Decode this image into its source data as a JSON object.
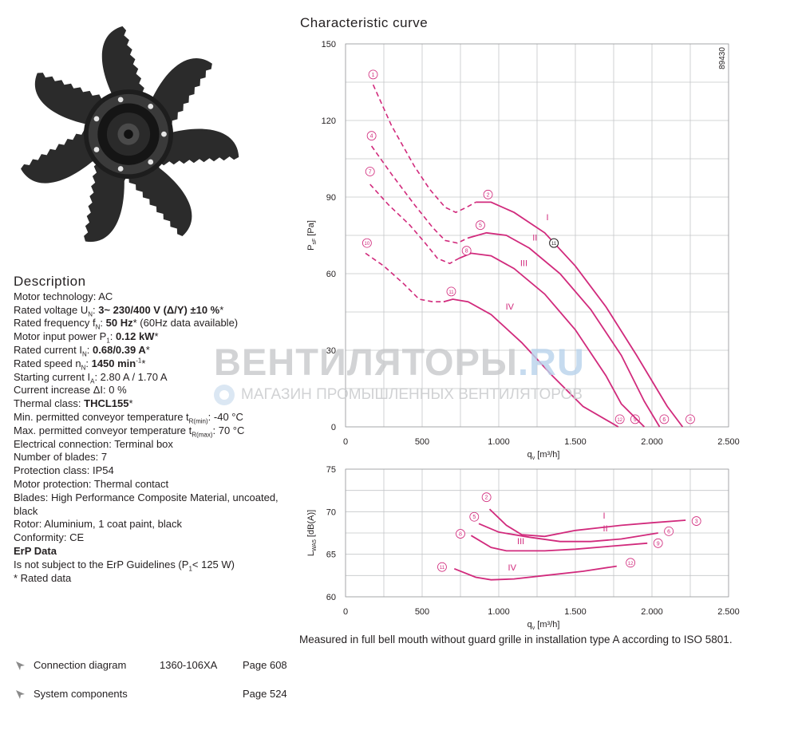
{
  "description": {
    "heading": "Description",
    "rows": [
      {
        "label": "Motor technology: AC"
      },
      {
        "label": "Rated voltage U",
        "sub": "N",
        "label2": ": ",
        "bold": "3~ 230/400 V (Δ/Y) ±10 %",
        "tail": "*"
      },
      {
        "label": "Rated frequency f",
        "sub": "N",
        "label2": ": ",
        "bold": "50 Hz",
        "tail": "* (60Hz data available)"
      },
      {
        "label": "Motor input power P",
        "sub": "1",
        "label2": ": ",
        "bold": "0.12 kW",
        "tail": "*"
      },
      {
        "label": "Rated current I",
        "sub": "N",
        "label2": ": ",
        "bold": "0.68/0.39 A",
        "tail": "*"
      },
      {
        "label": "Rated speed n",
        "sub": "N",
        "label2": ": ",
        "bold": "1450 min",
        "sup": "-1",
        "tail": "*"
      },
      {
        "label": "Starting current I",
        "sub": "A",
        "label2": ": 2.80 A / 1.70 A"
      },
      {
        "label": "Current increase ΔI: 0 %"
      },
      {
        "label": "Thermal class: ",
        "bold": "THCL155",
        "tail": "*"
      },
      {
        "label": "Min. permitted conveyor temperature t",
        "sub": "R(min)",
        "label2": ": -40  °C"
      },
      {
        "label": "Max. permitted conveyor temperature t",
        "sub": "R(max)",
        "label2": ": 70 °C"
      },
      {
        "label": "Electrical connection: Terminal box"
      },
      {
        "label": "Number of blades: 7"
      },
      {
        "label": "Protection class: IP54"
      },
      {
        "label": "Motor protection: Thermal contact"
      },
      {
        "label": "Blades: High Performance Composite Material, uncoated, black"
      },
      {
        "label": "Rotor: Aluminium, 1 coat paint, black"
      },
      {
        "label": "Conformity:  CE"
      },
      {
        "bold": "ErP Data"
      },
      {
        "label": "Is not subject to the ErP Guidelines (P",
        "sub": "1",
        "label2": "< 125 W)"
      },
      {
        "label": "* Rated data"
      }
    ]
  },
  "links": [
    {
      "label": "Connection diagram",
      "code": "1360-106XA",
      "page": "Page 608"
    },
    {
      "label": "System components",
      "code": "",
      "page": "Page 524"
    }
  ],
  "watermark": {
    "brand_main": "ВЕНТИЛЯТОРЫ",
    "brand_tld": ".RU",
    "tagline": "МАГАЗИН ПРОМЫШЛЕННЫХ ВЕНТИЛЯТОРОВ"
  },
  "chart_title": "Characteristic curve",
  "measurement_note": "Measured in full bell mouth without guard grille in installation type A according to ISO 5801.",
  "colors": {
    "curve": "#d12a7c",
    "grid": "#c4c6c8",
    "text": "#231f20"
  },
  "chart_data": [
    {
      "type": "line",
      "id": "pressure",
      "title": "",
      "figure_number": "89430",
      "xlabel": "q",
      "xlabel_sub": "v",
      "xlabel_unit": " [m³/h]",
      "ylabel": "P",
      "ylabel_sub": "sF",
      "ylabel_unit": " [Pa]",
      "xlim": [
        0,
        2500
      ],
      "ylim": [
        0,
        150
      ],
      "xticks": [
        0,
        500,
        1000,
        1500,
        2000,
        2500
      ],
      "xtick_labels": [
        "0",
        "500",
        "1.000",
        "1.500",
        "2.000",
        "2.500"
      ],
      "yticks": [
        0,
        30,
        60,
        90,
        120,
        150
      ],
      "xgrid_step": 250,
      "ygrid_step": 15,
      "series": [
        {
          "name": "I",
          "label_at": [
            1310,
            81
          ],
          "dashed": [
            [
              180,
              134
            ],
            [
              300,
              118
            ],
            [
              450,
              102
            ],
            [
              550,
              93
            ],
            [
              650,
              86
            ],
            [
              720,
              84
            ],
            [
              790,
              86
            ],
            [
              850,
              88
            ]
          ],
          "solid": [
            [
              850,
              88
            ],
            [
              950,
              88
            ],
            [
              1100,
              84
            ],
            [
              1300,
              76
            ],
            [
              1500,
              63
            ],
            [
              1700,
              47
            ],
            [
              1900,
              28
            ],
            [
              2100,
              8
            ],
            [
              2200,
              0
            ]
          ],
          "markers": [
            {
              "n": "1",
              "at": [
                180,
                138
              ]
            },
            {
              "n": "2",
              "at": [
                930,
                91
              ]
            },
            {
              "n": "3",
              "at": [
                2250,
                3
              ]
            },
            {
              "n": "6",
              "at": [
                2080,
                3
              ]
            }
          ]
        },
        {
          "name": "II",
          "label_at": [
            1220,
            73
          ],
          "dashed": [
            [
              170,
              110
            ],
            [
              300,
              99
            ],
            [
              450,
              87
            ],
            [
              570,
              78
            ],
            [
              650,
              73
            ],
            [
              730,
              72
            ],
            [
              800,
              74
            ]
          ],
          "solid": [
            [
              800,
              74
            ],
            [
              920,
              76
            ],
            [
              1050,
              75
            ],
            [
              1200,
              70
            ],
            [
              1400,
              60
            ],
            [
              1600,
              46
            ],
            [
              1800,
              28
            ],
            [
              1950,
              10
            ],
            [
              2050,
              0
            ]
          ],
          "markers": [
            {
              "n": "4",
              "at": [
                170,
                114
              ]
            },
            {
              "n": "5",
              "at": [
                880,
                79
              ]
            },
            {
              "n": "9",
              "at": [
                1890,
                3
              ]
            }
          ]
        },
        {
          "name": "III",
          "label_at": [
            1140,
            63
          ],
          "dashed": [
            [
              160,
              95
            ],
            [
              280,
              87
            ],
            [
              420,
              79
            ],
            [
              520,
              72
            ],
            [
              600,
              66
            ],
            [
              680,
              64
            ],
            [
              740,
              66
            ]
          ],
          "solid": [
            [
              740,
              66
            ],
            [
              820,
              68
            ],
            [
              950,
              67
            ],
            [
              1100,
              62
            ],
            [
              1300,
              52
            ],
            [
              1500,
              38
            ],
            [
              1700,
              20
            ],
            [
              1800,
              9
            ],
            [
              1950,
              0
            ]
          ],
          "markers": [
            {
              "n": "7",
              "at": [
                160,
                100
              ]
            },
            {
              "n": "8",
              "at": [
                790,
                69
              ]
            },
            {
              "n": "12",
              "at": [
                1790,
                3
              ]
            }
          ]
        },
        {
          "name": "IV",
          "label_at": [
            1045,
            46
          ],
          "dashed": [
            [
              130,
              68
            ],
            [
              250,
              63
            ],
            [
              380,
              56
            ],
            [
              480,
              50
            ],
            [
              570,
              49
            ],
            [
              640,
              49
            ]
          ],
          "solid": [
            [
              640,
              49
            ],
            [
              700,
              50
            ],
            [
              800,
              49
            ],
            [
              950,
              44
            ],
            [
              1150,
              33
            ],
            [
              1350,
              20
            ],
            [
              1550,
              8
            ],
            [
              1780,
              0
            ]
          ],
          "markers": [
            {
              "n": "10",
              "at": [
                140,
                72
              ]
            },
            {
              "n": "11",
              "at": [
                690,
                53
              ]
            }
          ]
        }
      ],
      "operating_point": {
        "n": "11",
        "at": [
          1360,
          72
        ]
      }
    },
    {
      "type": "line",
      "id": "sound",
      "title": "",
      "xlabel": "q",
      "xlabel_sub": "v",
      "xlabel_unit": " [m³/h]",
      "ylabel": "L",
      "ylabel_sub": "WA5",
      "ylabel_unit": " [dB(A)]",
      "xlim": [
        0,
        2500
      ],
      "ylim": [
        60,
        75
      ],
      "xticks": [
        0,
        500,
        1000,
        1500,
        2000,
        2500
      ],
      "xtick_labels": [
        "0",
        "500",
        "1.000",
        "1.500",
        "2.000",
        "2.500"
      ],
      "yticks": [
        60,
        65,
        70,
        75
      ],
      "xgrid_step": 250,
      "ygrid_step": 2.5,
      "series": [
        {
          "name": "I",
          "label_at": [
            1680,
            69.2
          ],
          "points": [
            [
              940,
              70.3
            ],
            [
              1050,
              68.4
            ],
            [
              1150,
              67.3
            ],
            [
              1300,
              67.1
            ],
            [
              1500,
              67.8
            ],
            [
              1800,
              68.4
            ],
            [
              2000,
              68.7
            ],
            [
              2220,
              69
            ]
          ],
          "markers": [
            {
              "n": "2",
              "at": [
                920,
                71.7
              ]
            },
            {
              "n": "3",
              "at": [
                2290,
                68.9
              ]
            }
          ]
        },
        {
          "name": "II",
          "label_at": [
            1680,
            67.7
          ],
          "points": [
            [
              870,
              68.6
            ],
            [
              1000,
              67.6
            ],
            [
              1200,
              67
            ],
            [
              1400,
              66.5
            ],
            [
              1600,
              66.5
            ],
            [
              1800,
              66.8
            ],
            [
              2040,
              67.5
            ]
          ],
          "markers": [
            {
              "n": "5",
              "at": [
                840,
                69.4
              ]
            },
            {
              "n": "6",
              "at": [
                2110,
                67.7
              ]
            }
          ]
        },
        {
          "name": "III",
          "label_at": [
            1120,
            66.2
          ],
          "points": [
            [
              820,
              67.2
            ],
            [
              950,
              65.8
            ],
            [
              1050,
              65.4
            ],
            [
              1300,
              65.4
            ],
            [
              1500,
              65.6
            ],
            [
              1700,
              65.9
            ],
            [
              1970,
              66.3
            ]
          ],
          "markers": [
            {
              "n": "8",
              "at": [
                750,
                67.4
              ]
            },
            {
              "n": "9",
              "at": [
                2040,
                66.3
              ]
            }
          ]
        },
        {
          "name": "IV",
          "label_at": [
            1060,
            63.1
          ],
          "points": [
            [
              710,
              63.3
            ],
            [
              850,
              62.3
            ],
            [
              950,
              62
            ],
            [
              1100,
              62.1
            ],
            [
              1300,
              62.5
            ],
            [
              1550,
              63
            ],
            [
              1770,
              63.6
            ]
          ],
          "markers": [
            {
              "n": "11",
              "at": [
                630,
                63.5
              ]
            },
            {
              "n": "12",
              "at": [
                1860,
                64
              ]
            }
          ]
        }
      ]
    }
  ]
}
